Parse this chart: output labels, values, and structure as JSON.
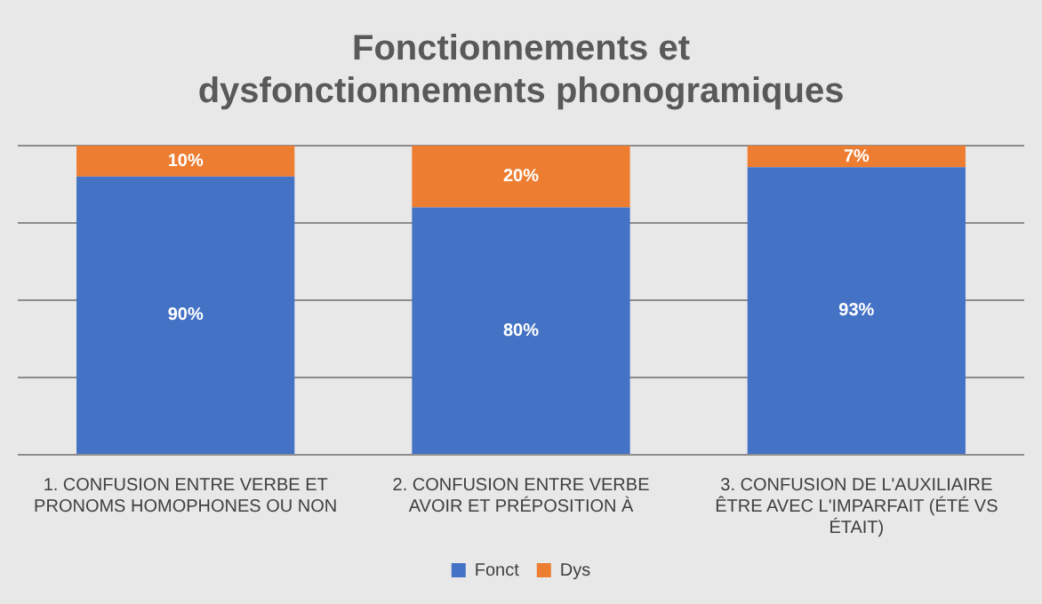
{
  "chart_data": {
    "type": "bar",
    "title": "Fonctionnements et dysfonctionnements phonogramiques",
    "categories": [
      "1. CONFUSION ENTRE VERBE ET PRONOMS HOMOPHONES OU NON",
      "2. CONFUSION ENTRE VERBE AVOIR ET PRÉPOSITION À",
      "3. CONFUSION DE L'AUXILIAIRE ÊTRE AVEC L'IMPARFAIT (ÉTÉ VS ÉTAIT)"
    ],
    "series": [
      {
        "name": "Fonct",
        "color": "#4472c4",
        "values": [
          90,
          80,
          93
        ],
        "value_labels": [
          "90%",
          "80%",
          "93%"
        ]
      },
      {
        "name": "Dys",
        "color": "#ed7d31",
        "values": [
          10,
          20,
          7
        ],
        "value_labels": [
          "10%",
          "20%",
          "7%"
        ]
      }
    ],
    "stacked": true,
    "ylim": [
      0,
      100
    ],
    "yticks": [
      {
        "value": 0,
        "label": null
      },
      {
        "value": 25,
        "label": null
      },
      {
        "value": 50,
        "label": null
      },
      {
        "value": 75,
        "label": null
      },
      {
        "value": 100,
        "label": null
      }
    ],
    "grid": "y",
    "legend": "bottom",
    "tick_labels": "x"
  }
}
